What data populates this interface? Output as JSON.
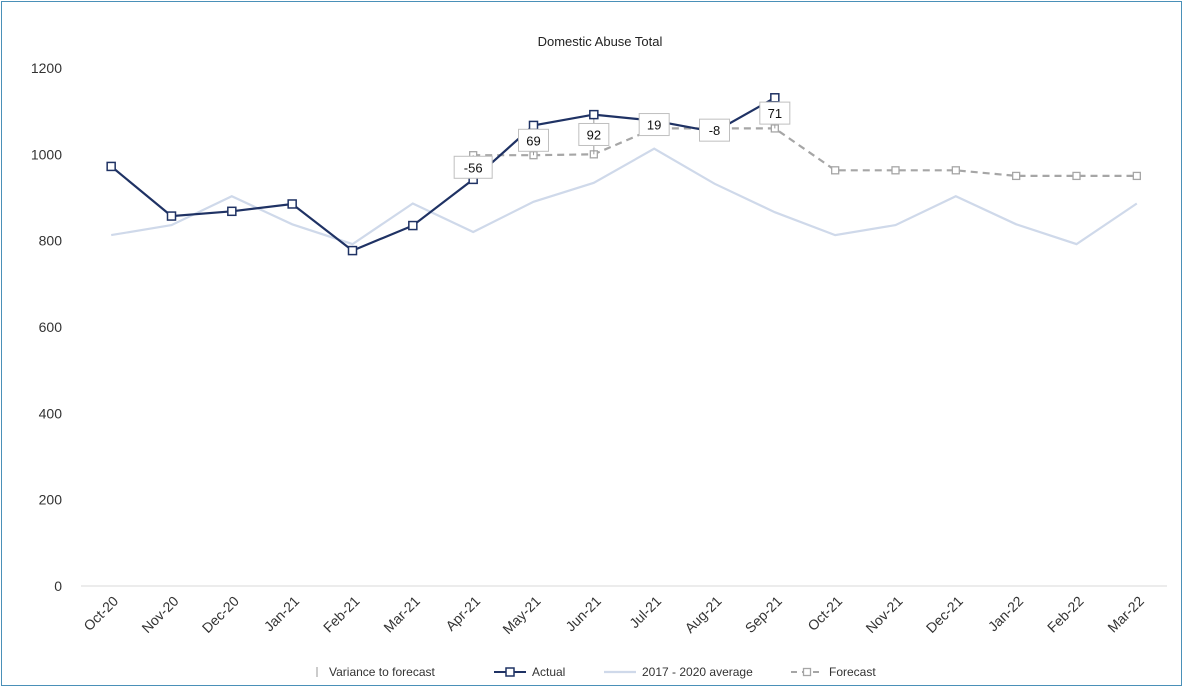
{
  "chart_data": {
    "type": "line",
    "title": "Domestic Abuse Total",
    "categories": [
      "Oct-20",
      "Nov-20",
      "Dec-20",
      "Jan-21",
      "Feb-21",
      "Mar-21",
      "Apr-21",
      "May-21",
      "Jun-21",
      "Jul-21",
      "Aug-21",
      "Sep-21",
      "Oct-21",
      "Nov-21",
      "Dec-21",
      "Jan-22",
      "Feb-22",
      "Mar-22"
    ],
    "y_ticks": [
      "0",
      "200",
      "400",
      "600",
      "800",
      "1000",
      "1200"
    ],
    "ylim": [
      0,
      1200
    ],
    "grid": false,
    "legend_position": "bottom",
    "series": [
      {
        "name": "Variance to forecast",
        "type": "error-bar",
        "color": "#9a9a9a"
      },
      {
        "name": "Actual",
        "color": "#1f3264",
        "marker": "square",
        "values": [
          972,
          857,
          868,
          885,
          777,
          835,
          942,
          1067,
          1092,
          1078,
          1052,
          1131,
          null,
          null,
          null,
          null,
          null,
          null
        ]
      },
      {
        "name": "2017 - 2020 average",
        "color": "#cfd9ea",
        "values": [
          813,
          836,
          903,
          838,
          792,
          886,
          820,
          890,
          934,
          1013,
          932,
          866,
          813,
          836,
          903,
          838,
          792,
          886
        ]
      },
      {
        "name": "Forecast",
        "color": "#a6a6a6",
        "dash": true,
        "marker": "square",
        "values": [
          null,
          null,
          null,
          null,
          null,
          null,
          998,
          998,
          1000,
          1060,
          1060,
          1060,
          963,
          963,
          963,
          950,
          950,
          950
        ]
      }
    ],
    "data_labels": [
      {
        "category": "Apr-21",
        "text": "-56"
      },
      {
        "category": "May-21",
        "text": "69"
      },
      {
        "category": "Jun-21",
        "text": "92"
      },
      {
        "category": "Jul-21",
        "text": "19"
      },
      {
        "category": "Aug-21",
        "text": "-8"
      },
      {
        "category": "Sep-21",
        "text": "71"
      }
    ]
  }
}
